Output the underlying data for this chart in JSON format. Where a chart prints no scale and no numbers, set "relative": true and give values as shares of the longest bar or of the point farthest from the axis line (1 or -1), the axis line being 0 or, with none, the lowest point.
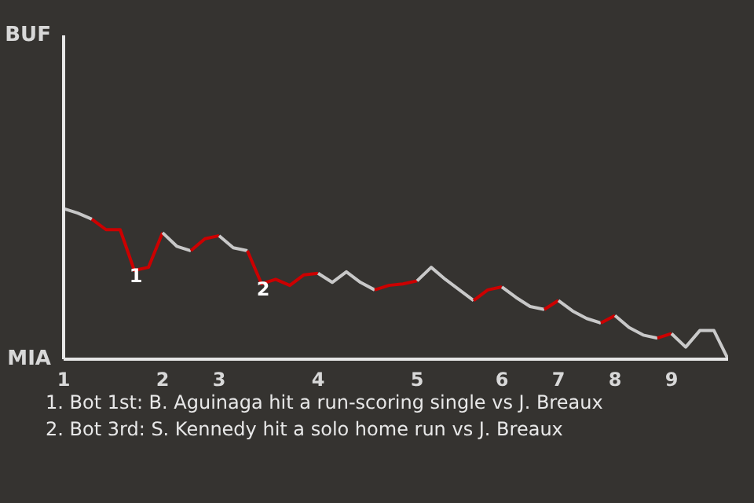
{
  "chart_data": {
    "type": "line",
    "relative": true,
    "marker": "none",
    "line_style": "solid",
    "categories": [
      "1",
      null,
      null,
      null,
      null,
      null,
      null,
      "2",
      null,
      null,
      null,
      "3",
      null,
      null,
      null,
      null,
      null,
      null,
      "4",
      null,
      null,
      null,
      null,
      null,
      null,
      "5",
      null,
      null,
      null,
      null,
      null,
      "6",
      null,
      null,
      null,
      "7",
      null,
      null,
      null,
      "8",
      null,
      null,
      null,
      "9",
      null,
      null,
      null,
      null
    ],
    "series": [
      {
        "color": "#c7c7c7",
        "values": [
          1.0,
          0.97,
          0.93,
          null,
          null,
          null,
          null,
          null,
          null,
          null,
          null,
          null,
          null,
          null,
          null,
          null,
          null,
          null,
          null,
          null,
          null,
          null,
          null,
          null,
          null,
          null,
          null,
          null,
          null,
          null,
          null,
          null,
          null,
          null,
          null,
          null,
          null,
          null,
          null,
          null,
          null,
          null,
          null,
          null,
          null,
          null,
          null,
          null
        ]
      },
      {
        "color": "#cc0000",
        "values": [
          null,
          null,
          0.93,
          0.86,
          0.86,
          0.59,
          0.61,
          0.84,
          null,
          null,
          null,
          null,
          null,
          null,
          null,
          null,
          null,
          null,
          null,
          null,
          null,
          null,
          null,
          null,
          null,
          null,
          null,
          null,
          null,
          null,
          null,
          null,
          null,
          null,
          null,
          null,
          null,
          null,
          null,
          null,
          null,
          null,
          null,
          null,
          null,
          null,
          null,
          null
        ]
      },
      {
        "color": "#c8c8c8",
        "values": [
          null,
          null,
          null,
          null,
          null,
          null,
          null,
          0.84,
          0.75,
          0.72,
          null,
          null,
          null,
          null,
          null,
          null,
          null,
          null,
          null,
          null,
          null,
          null,
          null,
          null,
          null,
          null,
          null,
          null,
          null,
          null,
          null,
          null,
          null,
          null,
          null,
          null,
          null,
          null,
          null,
          null,
          null,
          null,
          null,
          null,
          null,
          null,
          null,
          null
        ]
      },
      {
        "color": "#cc0000",
        "values": [
          null,
          null,
          null,
          null,
          null,
          null,
          null,
          null,
          null,
          0.72,
          0.8,
          0.82,
          null,
          null,
          null,
          null,
          null,
          null,
          null,
          null,
          null,
          null,
          null,
          null,
          null,
          null,
          null,
          null,
          null,
          null,
          null,
          null,
          null,
          null,
          null,
          null,
          null,
          null,
          null,
          null,
          null,
          null,
          null,
          null,
          null,
          null,
          null,
          null
        ]
      },
      {
        "color": "#c8c8c8",
        "values": [
          null,
          null,
          null,
          null,
          null,
          null,
          null,
          null,
          null,
          null,
          null,
          0.82,
          0.74,
          0.72,
          null,
          null,
          null,
          null,
          null,
          null,
          null,
          null,
          null,
          null,
          null,
          null,
          null,
          null,
          null,
          null,
          null,
          null,
          null,
          null,
          null,
          null,
          null,
          null,
          null,
          null,
          null,
          null,
          null,
          null,
          null,
          null,
          null,
          null
        ]
      },
      {
        "color": "#cc0000",
        "values": [
          null,
          null,
          null,
          null,
          null,
          null,
          null,
          null,
          null,
          null,
          null,
          null,
          null,
          0.72,
          0.5,
          0.53,
          0.49,
          0.56,
          0.57,
          null,
          null,
          null,
          null,
          null,
          null,
          null,
          null,
          null,
          null,
          null,
          null,
          null,
          null,
          null,
          null,
          null,
          null,
          null,
          null,
          null,
          null,
          null,
          null,
          null,
          null,
          null,
          null,
          null
        ]
      },
      {
        "color": "#c8c8c8",
        "values": [
          null,
          null,
          null,
          null,
          null,
          null,
          null,
          null,
          null,
          null,
          null,
          null,
          null,
          null,
          null,
          null,
          null,
          null,
          0.57,
          0.51,
          0.58,
          0.51,
          0.46,
          null,
          null,
          null,
          null,
          null,
          null,
          null,
          null,
          null,
          null,
          null,
          null,
          null,
          null,
          null,
          null,
          null,
          null,
          null,
          null,
          null,
          null,
          null,
          null,
          null
        ]
      },
      {
        "color": "#cc0000",
        "values": [
          null,
          null,
          null,
          null,
          null,
          null,
          null,
          null,
          null,
          null,
          null,
          null,
          null,
          null,
          null,
          null,
          null,
          null,
          null,
          null,
          null,
          null,
          0.46,
          0.49,
          0.5,
          0.52,
          null,
          null,
          null,
          null,
          null,
          null,
          null,
          null,
          null,
          null,
          null,
          null,
          null,
          null,
          null,
          null,
          null,
          null,
          null,
          null,
          null,
          null
        ]
      },
      {
        "color": "#c9c9c9",
        "values": [
          null,
          null,
          null,
          null,
          null,
          null,
          null,
          null,
          null,
          null,
          null,
          null,
          null,
          null,
          null,
          null,
          null,
          null,
          null,
          null,
          null,
          null,
          null,
          null,
          null,
          0.52,
          0.61,
          0.53,
          0.46,
          0.39,
          null,
          null,
          null,
          null,
          null,
          null,
          null,
          null,
          null,
          null,
          null,
          null,
          null,
          null,
          null,
          null,
          null,
          null
        ]
      },
      {
        "color": "#cc0000",
        "values": [
          null,
          null,
          null,
          null,
          null,
          null,
          null,
          null,
          null,
          null,
          null,
          null,
          null,
          null,
          null,
          null,
          null,
          null,
          null,
          null,
          null,
          null,
          null,
          null,
          null,
          null,
          null,
          null,
          null,
          0.39,
          0.46,
          0.48,
          null,
          null,
          null,
          null,
          null,
          null,
          null,
          null,
          null,
          null,
          null,
          null,
          null,
          null,
          null,
          null
        ]
      },
      {
        "color": "#c8c8c8",
        "values": [
          null,
          null,
          null,
          null,
          null,
          null,
          null,
          null,
          null,
          null,
          null,
          null,
          null,
          null,
          null,
          null,
          null,
          null,
          null,
          null,
          null,
          null,
          null,
          null,
          null,
          null,
          null,
          null,
          null,
          null,
          null,
          0.48,
          0.41,
          0.35,
          0.33,
          null,
          null,
          null,
          null,
          null,
          null,
          null,
          null,
          null,
          null,
          null,
          null,
          null
        ]
      },
      {
        "color": "#cc0000",
        "values": [
          null,
          null,
          null,
          null,
          null,
          null,
          null,
          null,
          null,
          null,
          null,
          null,
          null,
          null,
          null,
          null,
          null,
          null,
          null,
          null,
          null,
          null,
          null,
          null,
          null,
          null,
          null,
          null,
          null,
          null,
          null,
          null,
          null,
          null,
          0.33,
          0.39,
          null,
          null,
          null,
          null,
          null,
          null,
          null,
          null,
          null,
          null,
          null,
          null
        ]
      },
      {
        "color": "#c8c8c8",
        "values": [
          null,
          null,
          null,
          null,
          null,
          null,
          null,
          null,
          null,
          null,
          null,
          null,
          null,
          null,
          null,
          null,
          null,
          null,
          null,
          null,
          null,
          null,
          null,
          null,
          null,
          null,
          null,
          null,
          null,
          null,
          null,
          null,
          null,
          null,
          null,
          0.39,
          0.32,
          0.27,
          0.24,
          null,
          null,
          null,
          null,
          null,
          null,
          null,
          null,
          null
        ]
      },
      {
        "color": "#cc0000",
        "values": [
          null,
          null,
          null,
          null,
          null,
          null,
          null,
          null,
          null,
          null,
          null,
          null,
          null,
          null,
          null,
          null,
          null,
          null,
          null,
          null,
          null,
          null,
          null,
          null,
          null,
          null,
          null,
          null,
          null,
          null,
          null,
          null,
          null,
          null,
          null,
          null,
          null,
          null,
          0.24,
          0.29,
          null,
          null,
          null,
          null,
          null,
          null,
          null,
          null
        ]
      },
      {
        "color": "#c8c8c8",
        "values": [
          null,
          null,
          null,
          null,
          null,
          null,
          null,
          null,
          null,
          null,
          null,
          null,
          null,
          null,
          null,
          null,
          null,
          null,
          null,
          null,
          null,
          null,
          null,
          null,
          null,
          null,
          null,
          null,
          null,
          null,
          null,
          null,
          null,
          null,
          null,
          null,
          null,
          null,
          null,
          0.29,
          0.21,
          0.16,
          0.14,
          null,
          null,
          null,
          null,
          null
        ]
      },
      {
        "color": "#cc0000",
        "values": [
          null,
          null,
          null,
          null,
          null,
          null,
          null,
          null,
          null,
          null,
          null,
          null,
          null,
          null,
          null,
          null,
          null,
          null,
          null,
          null,
          null,
          null,
          null,
          null,
          null,
          null,
          null,
          null,
          null,
          null,
          null,
          null,
          null,
          null,
          null,
          null,
          null,
          null,
          null,
          null,
          null,
          null,
          0.14,
          0.17,
          null,
          null,
          null,
          null
        ]
      },
      {
        "color": "#cacaca",
        "values": [
          null,
          null,
          null,
          null,
          null,
          null,
          null,
          null,
          null,
          null,
          null,
          null,
          null,
          null,
          null,
          null,
          null,
          null,
          null,
          null,
          null,
          null,
          null,
          null,
          null,
          null,
          null,
          null,
          null,
          null,
          null,
          null,
          null,
          null,
          null,
          null,
          null,
          null,
          null,
          null,
          null,
          null,
          null,
          0.17,
          0.08,
          0.19,
          0.19,
          0
        ]
      }
    ],
    "annotations": [
      "BUF",
      "MIA",
      {
        "text": "1",
        "y": 0.59
      },
      {
        "text": "2",
        "y": 0.5
      },
      "1. Bot 1st: B. Aguinaga hit a run-scoring single vs J. Breaux",
      "2. Bot 3rd: S. Kennedy hit a solo home run vs J. Breaux"
    ]
  }
}
